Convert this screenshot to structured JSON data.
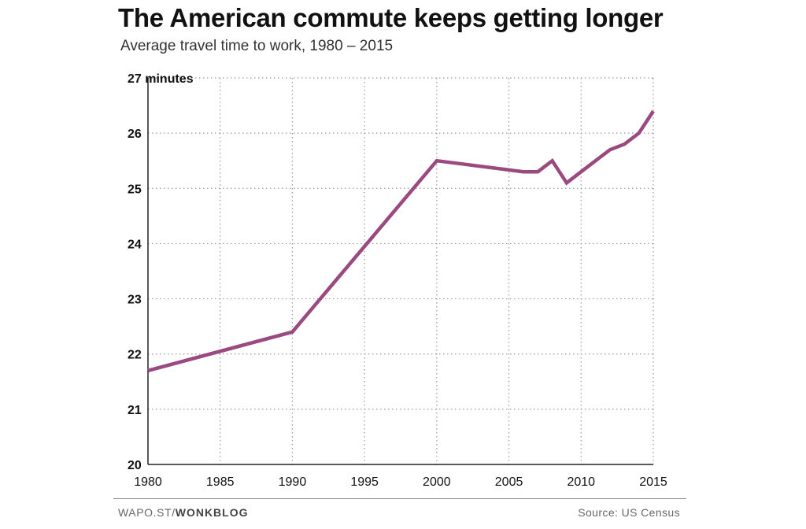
{
  "header": {
    "title": "The American commute keeps getting longer",
    "subtitle": "Average travel time to work, 1980 – 2015"
  },
  "footer": {
    "credit_prefix": "WAPO.ST/",
    "credit_brand": "WONKBLOG",
    "source": "Source: US Census"
  },
  "colors": {
    "line": "#9a4a7f",
    "grid": "#9a9a9a",
    "axis": "#222222"
  },
  "chart_data": {
    "type": "line",
    "title": "The American commute keeps getting longer",
    "subtitle": "Average travel time to work, 1980 – 2015",
    "xlabel": "",
    "ylabel": "minutes",
    "xlim": [
      1980,
      2015
    ],
    "ylim": [
      20,
      27
    ],
    "grid": true,
    "x_ticks": [
      1980,
      1985,
      1990,
      1995,
      2000,
      2005,
      2010,
      2015
    ],
    "y_ticks": [
      {
        "value": 27,
        "label": "27 minutes"
      },
      {
        "value": 26,
        "label": "26"
      },
      {
        "value": 25,
        "label": "25"
      },
      {
        "value": 24,
        "label": "24"
      },
      {
        "value": 23,
        "label": "23"
      },
      {
        "value": 22,
        "label": "22"
      },
      {
        "value": 21,
        "label": "21"
      },
      {
        "value": 20,
        "label": "20"
      }
    ],
    "series": [
      {
        "name": "Average travel time to work",
        "x": [
          1980,
          1990,
          2000,
          2006,
          2007,
          2008,
          2009,
          2010,
          2011,
          2012,
          2013,
          2014,
          2015
        ],
        "values": [
          21.7,
          22.4,
          25.5,
          25.3,
          25.3,
          25.5,
          25.1,
          25.3,
          25.5,
          25.7,
          25.8,
          26.0,
          26.4
        ]
      }
    ]
  }
}
